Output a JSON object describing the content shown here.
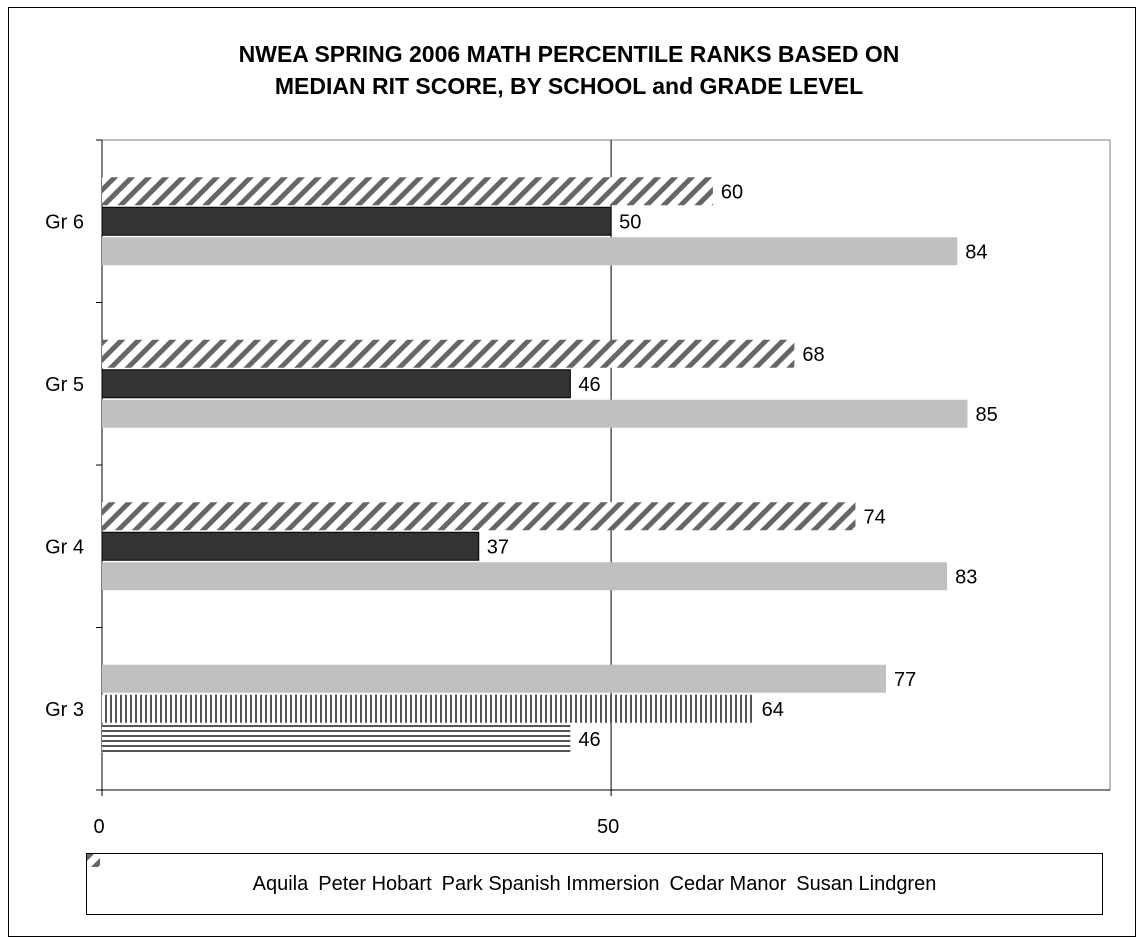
{
  "chart_data": {
    "type": "bar",
    "orientation": "horizontal",
    "title": "NWEA SPRING 2006 MATH PERCENTILE RANKS BASED ON\nMEDIAN RIT SCORE, BY SCHOOL and GRADE LEVEL",
    "xlabel": "",
    "ylabel": "",
    "categories": [
      "Gr 3",
      "Gr 4",
      "Gr 5",
      "Gr 6"
    ],
    "xlim": [
      0,
      99
    ],
    "xticks": [
      0,
      50
    ],
    "grid": "vertical",
    "legend_position": "bottom",
    "series": [
      {
        "name": "Aquila",
        "values": [
          46,
          null,
          null,
          null
        ],
        "pattern": "horizontal-lines",
        "color": "#555555"
      },
      {
        "name": "Peter Hobart",
        "values": [
          64,
          null,
          null,
          null
        ],
        "pattern": "vertical-lines",
        "color": "#555555"
      },
      {
        "name": "Park Spanish Immersion",
        "values": [
          77,
          83,
          85,
          84
        ],
        "pattern": "solid",
        "color": "#c0c0c0"
      },
      {
        "name": "Cedar Manor",
        "values": [
          null,
          37,
          46,
          50
        ],
        "pattern": "solid",
        "color": "#333333"
      },
      {
        "name": "Susan Lindgren",
        "values": [
          null,
          74,
          68,
          60
        ],
        "pattern": "diagonal-lines",
        "color": "#555555"
      }
    ]
  }
}
